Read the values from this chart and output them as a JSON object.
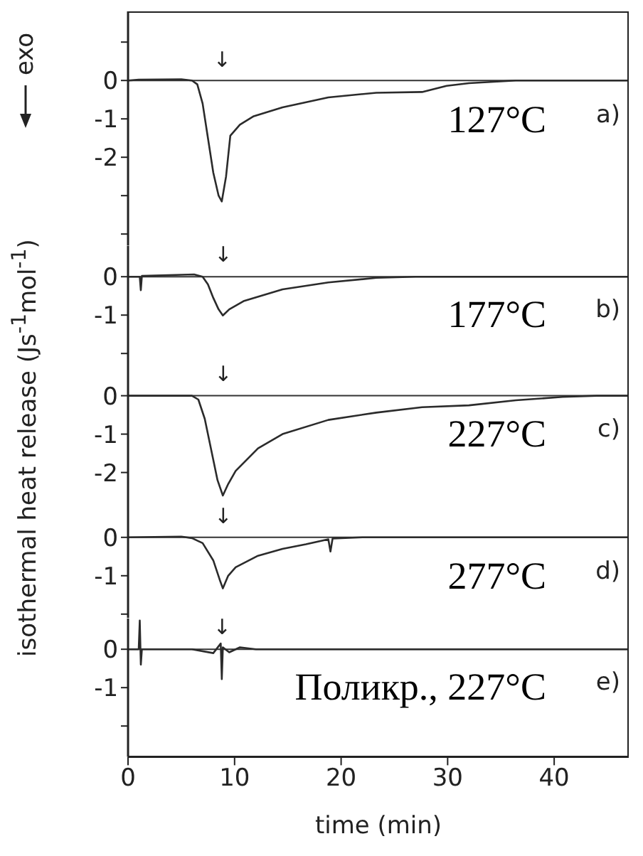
{
  "chart_data": [
    {
      "type": "line",
      "ylabel": "isothermal heat release (Js$^{-1}$mol$^{-1}$)",
      "annotations": [
        "127°C",
        "a)",
        "↓",
        "exo"
      ],
      "x": [
        0,
        1,
        5,
        6,
        6.5,
        7,
        7.5,
        8,
        8.5,
        8.8,
        9.2,
        9.6,
        10.5,
        11.8,
        14.5,
        18.8,
        23.3,
        27.6,
        29.9,
        32,
        36.4,
        47
      ],
      "series": [
        {
          "color": "#2b2b2b",
          "values": [
            0,
            0.02,
            0.03,
            0,
            -0.1,
            -0.6,
            -1.5,
            -2.4,
            -3.0,
            -3.15,
            -2.5,
            -1.44,
            -1.15,
            -0.93,
            -0.7,
            -0.44,
            -0.32,
            -0.3,
            -0.14,
            -0.07,
            0,
            0
          ]
        }
      ],
      "xlim": [
        0,
        47
      ],
      "ylim": [
        -4.3,
        1.8
      ],
      "yticks": [
        {
          "value": 1,
          "label": null
        },
        0,
        -1,
        -2,
        {
          "value": -3,
          "label": null
        },
        {
          "value": -4,
          "label": null
        }
      ],
      "ref_lines": [
        {
          "axis": "y",
          "value": 0
        }
      ],
      "tick_labels": "y",
      "marker": "none"
    },
    {
      "type": "line",
      "annotations": [
        "177°C",
        "b)",
        "↓"
      ],
      "x": [
        0,
        1.1,
        1.2,
        1.3,
        5,
        6.2,
        7,
        7.5,
        8,
        8.5,
        8.9,
        9.5,
        10.9,
        14.5,
        18.8,
        23.3,
        27,
        47
      ],
      "series": [
        {
          "color": "#2b2b2b",
          "values": [
            0,
            0,
            -0.35,
            0.02,
            0.05,
            0.06,
            0,
            -0.2,
            -0.55,
            -0.85,
            -1.01,
            -0.85,
            -0.63,
            -0.33,
            -0.15,
            -0.03,
            0,
            0
          ]
        }
      ],
      "xlim": [
        0,
        47
      ],
      "ylim": [
        -2.2,
        0.8
      ],
      "yticks": [
        0,
        -1,
        {
          "value": -2,
          "label": null
        }
      ],
      "ref_lines": [
        {
          "axis": "y",
          "value": 0
        }
      ],
      "tick_labels": "y",
      "marker": "none"
    },
    {
      "type": "line",
      "annotations": [
        "227°C",
        "c)",
        "↓"
      ],
      "x": [
        0,
        6,
        6.6,
        7.2,
        7.8,
        8.4,
        8.9,
        9.4,
        10.1,
        12.2,
        14.5,
        18.8,
        23.3,
        27.6,
        32,
        36.4,
        40.8,
        44,
        47
      ],
      "series": [
        {
          "color": "#2b2b2b",
          "values": [
            0,
            0,
            -0.1,
            -0.6,
            -1.4,
            -2.2,
            -2.6,
            -2.3,
            -1.96,
            -1.37,
            -1.0,
            -0.63,
            -0.44,
            -0.3,
            -0.25,
            -0.12,
            -0.03,
            0,
            0
          ]
        }
      ],
      "xlim": [
        0,
        47
      ],
      "ylim": [
        -3,
        0.9
      ],
      "yticks": [
        0,
        -1,
        -2
      ],
      "ref_lines": [
        {
          "axis": "y",
          "value": 0
        }
      ],
      "tick_labels": "y",
      "marker": "none"
    },
    {
      "type": "line",
      "annotations": [
        "277°C",
        "d)",
        "↓"
      ],
      "x": [
        0,
        5,
        6,
        7,
        8,
        8.6,
        8.9,
        9.4,
        10.1,
        12.2,
        14.5,
        16.7,
        18.8,
        19,
        19.2,
        22,
        47
      ],
      "series": [
        {
          "color": "#2b2b2b",
          "values": [
            0,
            0.02,
            -0.02,
            -0.15,
            -0.6,
            -1.1,
            -1.33,
            -1.0,
            -0.78,
            -0.48,
            -0.3,
            -0.18,
            -0.05,
            -0.37,
            -0.03,
            0,
            0
          ]
        }
      ],
      "xlim": [
        0,
        47
      ],
      "ylim": [
        -2.1,
        0.7
      ],
      "yticks": [
        0,
        -1,
        {
          "value": -2,
          "label": null
        }
      ],
      "ref_lines": [
        {
          "axis": "y",
          "value": 0
        }
      ],
      "tick_labels": "y",
      "marker": "none"
    },
    {
      "type": "line",
      "xlabel": "time (min)",
      "annotations": [
        "Поликр., 227°C",
        "e)",
        "↓"
      ],
      "x": [
        0,
        1.0,
        1.1,
        1.2,
        1.3,
        6,
        8,
        8.7,
        8.8,
        8.9,
        9.5,
        10.5,
        12,
        47
      ],
      "series": [
        {
          "color": "#2b2b2b",
          "values": [
            0,
            0,
            0.75,
            -0.4,
            0,
            0,
            -0.1,
            0.15,
            -0.78,
            0.05,
            -0.08,
            0.05,
            0,
            0
          ]
        }
      ],
      "xlim": [
        0,
        47
      ],
      "xticks": [
        0,
        10,
        20,
        30,
        40
      ],
      "ylim": [
        -2.8,
        0.8
      ],
      "yticks": [
        0,
        -1,
        {
          "value": -2,
          "label": null
        }
      ],
      "ref_lines": [
        {
          "axis": "y",
          "value": 0
        }
      ],
      "marker": "none"
    }
  ]
}
